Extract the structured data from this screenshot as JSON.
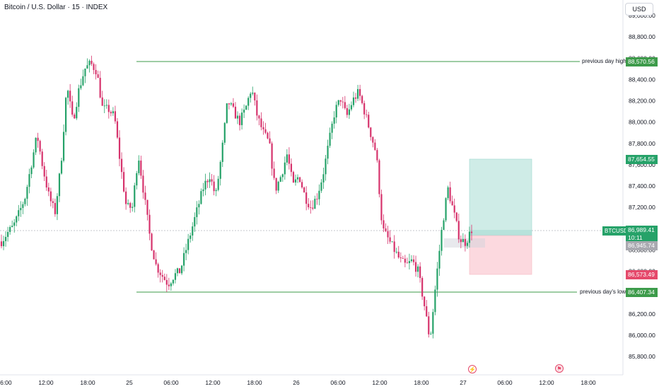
{
  "header": {
    "title": "Bitcoin / U.S. Dollar · 15 · INDEX",
    "currency_button": "USD"
  },
  "colors": {
    "up": "#26a269",
    "down": "#d6336c",
    "level_line": "#3d9b4a",
    "target_zone": "#cfece7",
    "stop_zone": "#fcd9df",
    "entry_band": "#d1d4dc"
  },
  "price_axis": {
    "ticks": [
      "89,000.00",
      "88,800.00",
      "88,600.00",
      "88,400.00",
      "88,200.00",
      "88,000.00",
      "87,800.00",
      "87,600.00",
      "87,400.00",
      "87,200.00",
      "87,000.00",
      "86,800.00",
      "86,600.00",
      "86,400.00",
      "86,200.00",
      "86,000.00",
      "85,800.00"
    ],
    "badges": {
      "prev_high": "88,570.56",
      "target": "87,654.55",
      "entry": "86,945.74",
      "stop": "86,573.49",
      "prev_low": "86,407.34"
    }
  },
  "time_axis": {
    "labels": [
      "06:00",
      "12:00",
      "18:00",
      "25",
      "06:00",
      "12:00",
      "18:00",
      "26",
      "06:00",
      "12:00",
      "18:00",
      "27",
      "06:00",
      "12:00",
      "18:00"
    ]
  },
  "levels": {
    "prev_high": {
      "label": "previous day high",
      "price": 88570.56
    },
    "prev_low": {
      "label": "previous day's low",
      "price": 86407.34
    }
  },
  "position": {
    "target": 87654.55,
    "entry": 86945.74,
    "stop": 86573.49
  },
  "current": {
    "symbol": "BTCUSD",
    "price": "86,989.41",
    "countdown": "10:11",
    "value": 86989.41
  },
  "events": {
    "lightning_icon": "lightning-icon",
    "flag_icon": "us-flag-icon"
  },
  "chart_data": {
    "type": "candlestick",
    "title": "Bitcoin / U.S. Dollar · 15 · INDEX",
    "interval": "15",
    "ylim": [
      85720,
      89020
    ],
    "x": [
      "24 06:00",
      "24 12:00",
      "24 18:00",
      "25 00:00",
      "25 06:00",
      "25 12:00",
      "25 18:00",
      "26 00:00",
      "26 06:00",
      "26 12:00",
      "26 18:00",
      "27 00:00",
      "27 06:00",
      "27 12:00",
      "27 18:00"
    ],
    "series": [
      {
        "values": [
          [
            0,
            86880
          ],
          [
            1,
            86960
          ],
          [
            2,
            87020
          ],
          [
            3,
            87150
          ],
          [
            4,
            87300
          ],
          [
            5,
            87600
          ],
          [
            6,
            87880
          ],
          [
            7,
            87560
          ],
          [
            8,
            87300
          ],
          [
            9,
            87150
          ],
          [
            10,
            87600
          ],
          [
            11,
            88350
          ],
          [
            12,
            88000
          ],
          [
            13,
            88300
          ],
          [
            14,
            88500
          ],
          [
            15,
            88550
          ],
          [
            16,
            88480
          ],
          [
            17,
            88120
          ],
          [
            18,
            88120
          ],
          [
            19,
            88050
          ],
          [
            20,
            87600
          ],
          [
            21,
            87200
          ],
          [
            22,
            87200
          ],
          [
            23,
            87700
          ],
          [
            24,
            87300
          ],
          [
            25,
            86900
          ],
          [
            26,
            86650
          ],
          [
            27,
            86560
          ],
          [
            28,
            86480
          ],
          [
            29,
            86560
          ],
          [
            30,
            86600
          ],
          [
            31,
            86800
          ],
          [
            32,
            87000
          ],
          [
            33,
            87200
          ],
          [
            34,
            87400
          ],
          [
            35,
            87500
          ],
          [
            36,
            87300
          ],
          [
            37,
            87700
          ],
          [
            38,
            88200
          ],
          [
            39,
            88100
          ],
          [
            40,
            88000
          ],
          [
            41,
            88120
          ],
          [
            42,
            88320
          ],
          [
            43,
            88050
          ],
          [
            44,
            87900
          ],
          [
            45,
            87800
          ],
          [
            46,
            87360
          ],
          [
            47,
            87500
          ],
          [
            48,
            87700
          ],
          [
            49,
            87400
          ],
          [
            50,
            87500
          ],
          [
            51,
            87300
          ],
          [
            52,
            87200
          ],
          [
            53,
            87300
          ],
          [
            54,
            87500
          ],
          [
            55,
            87800
          ],
          [
            56,
            88100
          ],
          [
            57,
            88220
          ],
          [
            58,
            88050
          ],
          [
            59,
            88200
          ],
          [
            60,
            88280
          ],
          [
            61,
            88100
          ],
          [
            62,
            87900
          ],
          [
            63,
            87700
          ],
          [
            64,
            87000
          ],
          [
            65,
            86900
          ],
          [
            66,
            86800
          ],
          [
            67,
            86700
          ],
          [
            68,
            86650
          ],
          [
            69,
            86700
          ],
          [
            70,
            86600
          ],
          [
            71,
            86300
          ],
          [
            72,
            85950
          ],
          [
            73,
            86500
          ],
          [
            74,
            87000
          ],
          [
            75,
            87380
          ],
          [
            76,
            87150
          ],
          [
            77,
            86900
          ],
          [
            78,
            86870
          ],
          [
            79,
            86990
          ]
        ]
      }
    ]
  }
}
